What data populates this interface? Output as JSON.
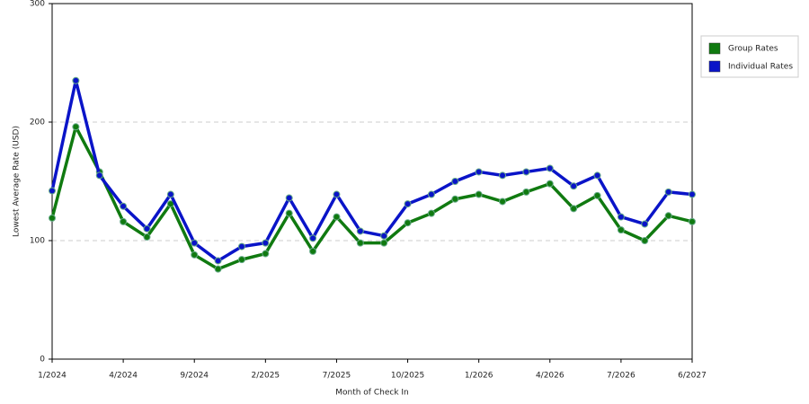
{
  "chart_data": {
    "type": "line",
    "x_label": "Month of Check In",
    "y_label": "Lowest Average Rate (USD)",
    "categories": [
      "1/2024",
      null,
      null,
      "4/2024",
      null,
      null,
      "9/2024",
      null,
      null,
      "2/2025",
      null,
      null,
      "7/2025",
      null,
      null,
      "10/2025",
      null,
      null,
      "1/2026",
      null,
      null,
      "4/2026",
      null,
      null,
      "7/2026",
      null,
      null,
      "6/2027"
    ],
    "series": [
      {
        "name": "Group Rates",
        "color": "#107a10",
        "values": [
          119,
          196,
          158,
          116,
          103,
          131,
          88,
          76,
          84,
          89,
          123,
          91,
          120,
          98,
          98,
          115,
          123,
          135,
          139,
          133,
          141,
          148,
          127,
          138,
          109,
          100,
          121,
          116
        ]
      },
      {
        "name": "Individual Rates",
        "color": "#0a14c8",
        "values": [
          142,
          235,
          155,
          129,
          110,
          139,
          98,
          83,
          95,
          98,
          136,
          102,
          139,
          108,
          104,
          131,
          139,
          150,
          158,
          155,
          158,
          161,
          146,
          155,
          120,
          114,
          141,
          139
        ]
      }
    ],
    "ylim": [
      0,
      300
    ],
    "yticks": [
      0,
      100,
      200,
      300
    ],
    "grid": true,
    "legend": "right"
  }
}
